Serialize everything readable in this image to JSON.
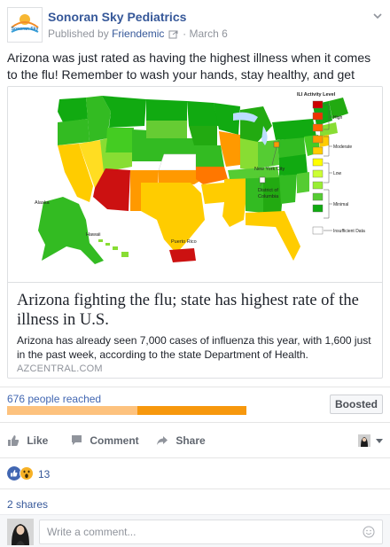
{
  "post": {
    "page_name": "Sonoran Sky Pediatrics",
    "avatar_text": "Sonoran Sky",
    "published_by_prefix": "Published by",
    "published_by_name": "Friendemic",
    "separator": "·",
    "date": "March 6",
    "text": "Arizona was just rated as having the highest illness when it comes to the flu! Remember to wash your hands, stay healthy, and get vaccinated."
  },
  "link_preview": {
    "title": "Arizona fighting the flu; state has highest rate of the illness in U.S.",
    "description": "Arizona has already seen 7,000 cases of influenza this year, with 1,600 just in the past week, according to the state Department of Health.",
    "domain": "AZCENTRAL.COM",
    "map": {
      "legend_title": "ILI Activity Level",
      "legend_labels": {
        "high": "High",
        "moderate": "Moderate",
        "low": "Low",
        "minimal": "Minimal",
        "insufficient": "Insufficient Data"
      },
      "labels": {
        "alaska": "Alaska",
        "hawaii": "Hawaii",
        "puerto_rico": "Puerto Rico",
        "nyc": "New York City",
        "dc_line1": "District of",
        "dc_line2": "Columbia"
      },
      "legend_colors": [
        "#cc0000",
        "#ee3300",
        "#ff6600",
        "#ff9900",
        "#ffcc00",
        "#ffff00",
        "#ccff33",
        "#99ee33",
        "#55cc33",
        "#11aa11",
        "#ffffff"
      ]
    }
  },
  "reach": {
    "text": "676 people reached",
    "organic_fraction": 0.545,
    "paid_fraction": 0.455,
    "boosted_label": "Boosted"
  },
  "actions": {
    "like": "Like",
    "comment": "Comment",
    "share": "Share"
  },
  "reactions": {
    "types": [
      "like-icon",
      "wow-icon"
    ],
    "count": "13"
  },
  "shares": "2 shares",
  "comment_box": {
    "placeholder": "Write a comment..."
  },
  "colors": {
    "link": "#365899",
    "accent_orange": "#f7980d",
    "like_blue": "#4267b2"
  }
}
